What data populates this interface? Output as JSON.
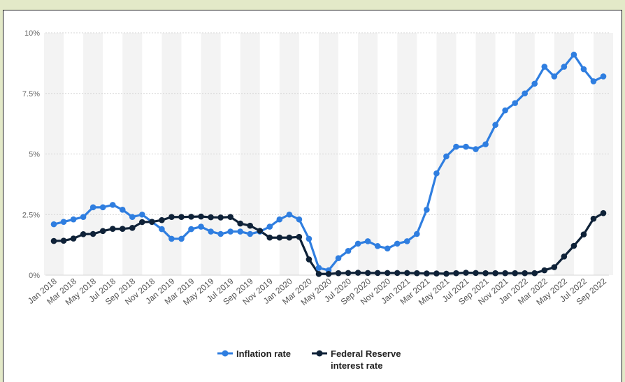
{
  "chart_data": {
    "type": "line",
    "x": [
      "Jan 2018",
      "Feb 2018",
      "Mar 2018",
      "Apr 2018",
      "May 2018",
      "Jun 2018",
      "Jul 2018",
      "Aug 2018",
      "Sep 2018",
      "Oct 2018",
      "Nov 2018",
      "Dec 2018",
      "Jan 2019",
      "Feb 2019",
      "Mar 2019",
      "Apr 2019",
      "May 2019",
      "Jun 2019",
      "Jul 2019",
      "Aug 2019",
      "Sep 2019",
      "Oct 2019",
      "Nov 2019",
      "Dec 2019",
      "Jan 2020",
      "Feb 2020",
      "Mar 2020",
      "Apr 2020",
      "May 2020",
      "Jun 2020",
      "Jul 2020",
      "Aug 2020",
      "Sep 2020",
      "Oct 2020",
      "Nov 2020",
      "Dec 2020",
      "Jan 2021",
      "Feb 2021",
      "Mar 2021",
      "Apr 2021",
      "May 2021",
      "Jun 2021",
      "Jul 2021",
      "Aug 2021",
      "Sep 2021",
      "Oct 2021",
      "Nov 2021",
      "Dec 2021",
      "Jan 2022",
      "Feb 2022",
      "Mar 2022",
      "Apr 2022",
      "May 2022",
      "Jun 2022",
      "Jul 2022",
      "Aug 2022",
      "Sep 2022"
    ],
    "x_tick_labels": [
      "Jan 2018",
      "Mar 2018",
      "May 2018",
      "Jul 2018",
      "Sep 2018",
      "Nov 2018",
      "Jan 2019",
      "Mar 2019",
      "May 2019",
      "Jul 2019",
      "Sep 2019",
      "Nov 2019",
      "Jan 2020",
      "Mar 2020",
      "May 2020",
      "Jul 2020",
      "Sep 2020",
      "Nov 2020",
      "Jan 2021",
      "Mar 2021",
      "May 2021",
      "Jul 2021",
      "Sep 2021",
      "Nov 2021",
      "Jan 2022",
      "Mar 2022",
      "May 2022",
      "Jul 2022",
      "Sep 2022"
    ],
    "y_ticks": [
      0,
      2.5,
      5,
      7.5,
      10
    ],
    "y_tick_labels": [
      "0%",
      "2.5%",
      "5%",
      "7.5%",
      "10%"
    ],
    "ylim": [
      0,
      10
    ],
    "grid": "alternating vertical bands, horizontal dashed gridlines",
    "legend_position": "bottom-center",
    "series": [
      {
        "name": "Inflation rate",
        "color": "#2f7ee0",
        "values": [
          2.1,
          2.2,
          2.3,
          2.4,
          2.8,
          2.8,
          2.9,
          2.7,
          2.4,
          2.5,
          2.2,
          1.9,
          1.5,
          1.5,
          1.9,
          2.0,
          1.8,
          1.7,
          1.8,
          1.8,
          1.7,
          1.8,
          2.0,
          2.3,
          2.5,
          2.3,
          1.5,
          0.3,
          0.2,
          0.7,
          1.0,
          1.3,
          1.4,
          1.2,
          1.1,
          1.3,
          1.4,
          1.7,
          2.7,
          4.2,
          4.9,
          5.3,
          5.3,
          5.2,
          5.4,
          6.2,
          6.8,
          7.1,
          7.5,
          7.9,
          8.6,
          8.2,
          8.6,
          9.1,
          8.5,
          8.0,
          8.2
        ]
      },
      {
        "name": "Federal Reserve interest rate",
        "color": "#0f2238",
        "values": [
          1.41,
          1.42,
          1.51,
          1.69,
          1.7,
          1.82,
          1.91,
          1.91,
          1.95,
          2.19,
          2.2,
          2.27,
          2.4,
          2.4,
          2.41,
          2.42,
          2.39,
          2.38,
          2.4,
          2.13,
          2.04,
          1.83,
          1.55,
          1.55,
          1.55,
          1.58,
          0.65,
          0.05,
          0.05,
          0.08,
          0.09,
          0.1,
          0.09,
          0.09,
          0.09,
          0.09,
          0.09,
          0.08,
          0.07,
          0.07,
          0.06,
          0.08,
          0.1,
          0.09,
          0.08,
          0.08,
          0.08,
          0.08,
          0.08,
          0.08,
          0.2,
          0.33,
          0.77,
          1.21,
          1.68,
          2.33,
          2.56
        ]
      }
    ]
  },
  "legend": {
    "series1_label": "Inflation rate",
    "series2_label_line1": "Federal Reserve",
    "series2_label_line2": "interest rate"
  }
}
